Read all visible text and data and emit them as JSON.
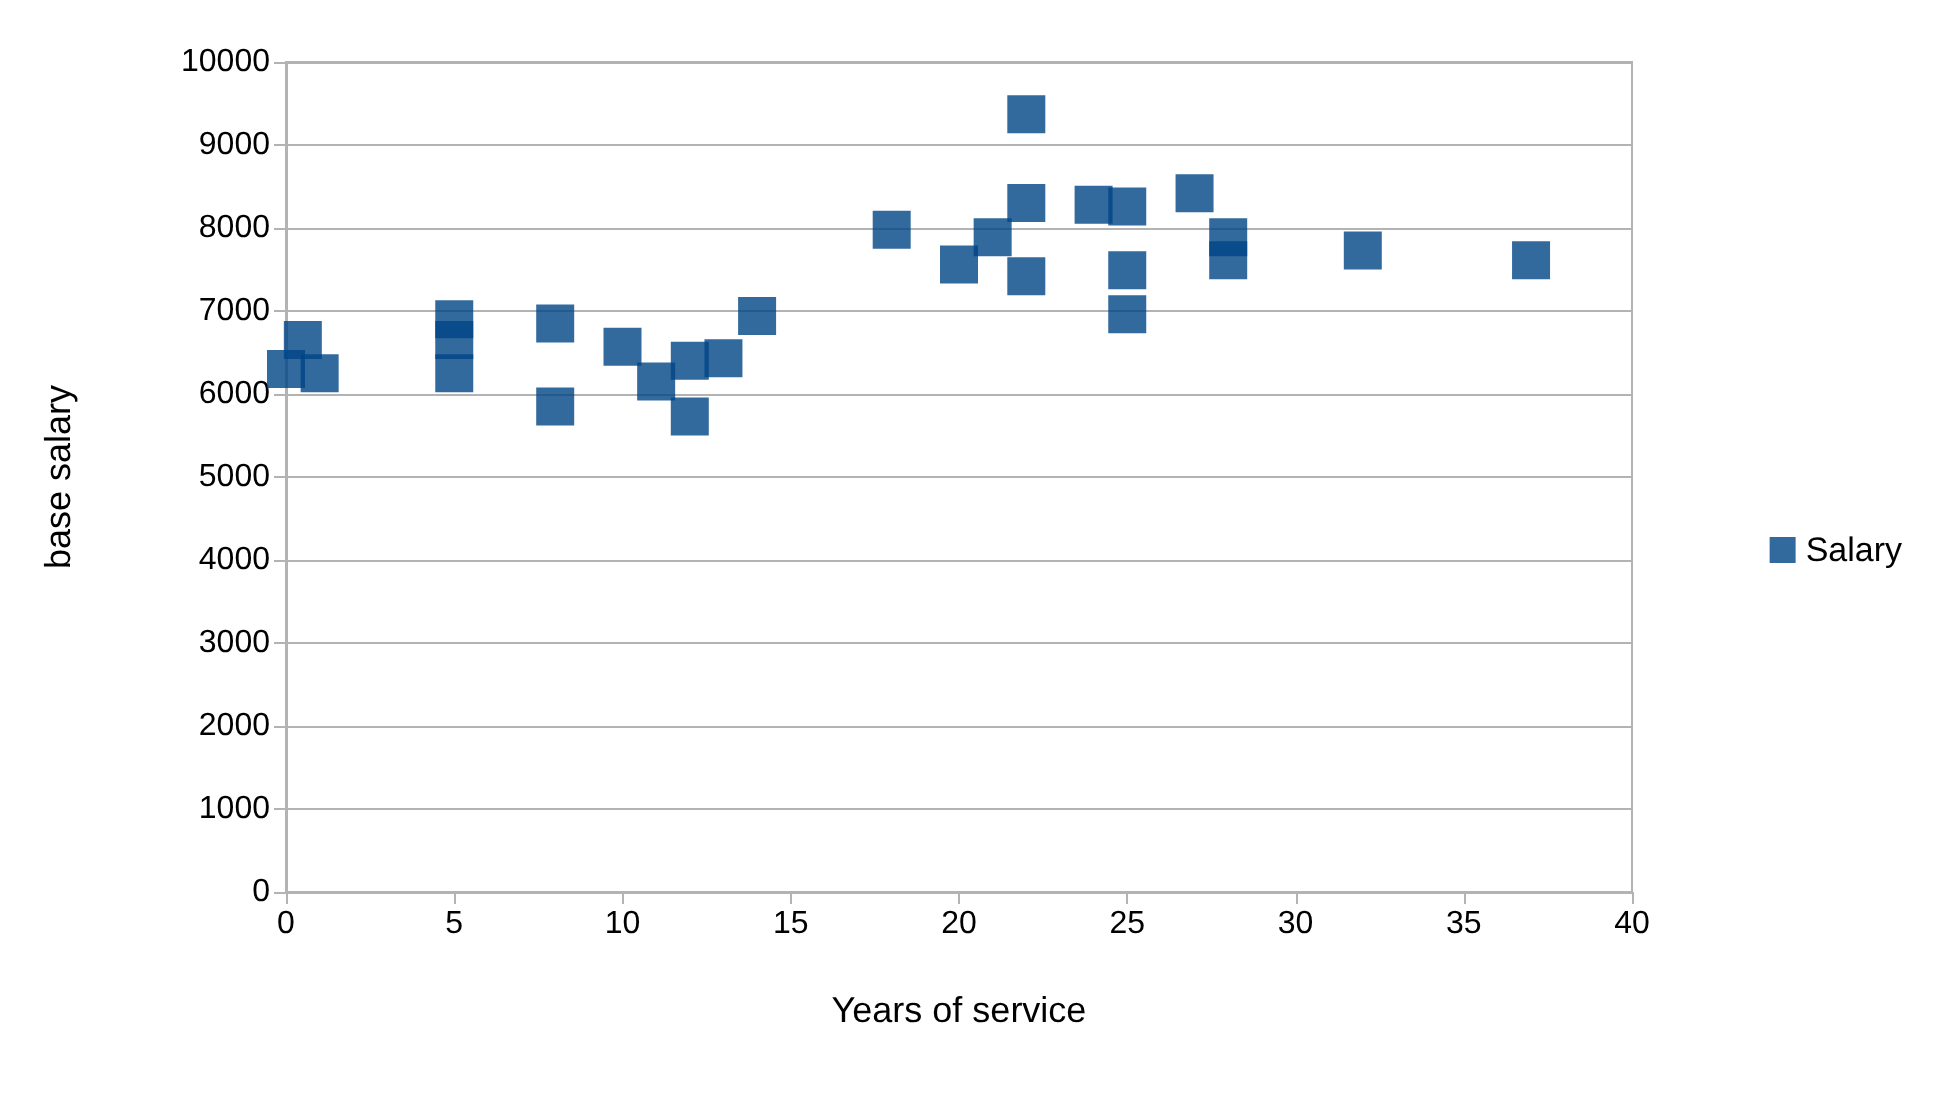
{
  "chart_data": {
    "type": "scatter",
    "xlabel": "Years of service",
    "ylabel": "base salary",
    "series": [
      {
        "name": "Salary",
        "color": "#004586",
        "x": [
          0,
          0.5,
          1,
          5,
          5,
          5,
          8,
          8,
          10,
          11,
          12,
          12,
          13,
          14,
          18,
          20,
          21,
          22,
          22,
          22,
          24,
          25,
          25,
          25,
          27,
          28,
          28,
          32,
          37
        ],
        "values": [
          6300,
          6650,
          6250,
          6900,
          6650,
          6250,
          6850,
          5850,
          6570,
          6150,
          6400,
          5730,
          6430,
          6940,
          7980,
          7560,
          7890,
          9370,
          8300,
          7420,
          8280,
          8260,
          7490,
          6960,
          8420,
          7890,
          7610,
          7730,
          7610
        ]
      }
    ],
    "xlim": [
      0,
      40
    ],
    "xticks": [
      0,
      5,
      10,
      15,
      20,
      25,
      30,
      35,
      40
    ],
    "ylim": [
      0,
      10000
    ],
    "yticks": [
      0,
      1000,
      2000,
      3000,
      4000,
      5000,
      6000,
      7000,
      8000,
      9000,
      10000
    ],
    "grid": "y",
    "legend": "right",
    "marker": "square"
  }
}
